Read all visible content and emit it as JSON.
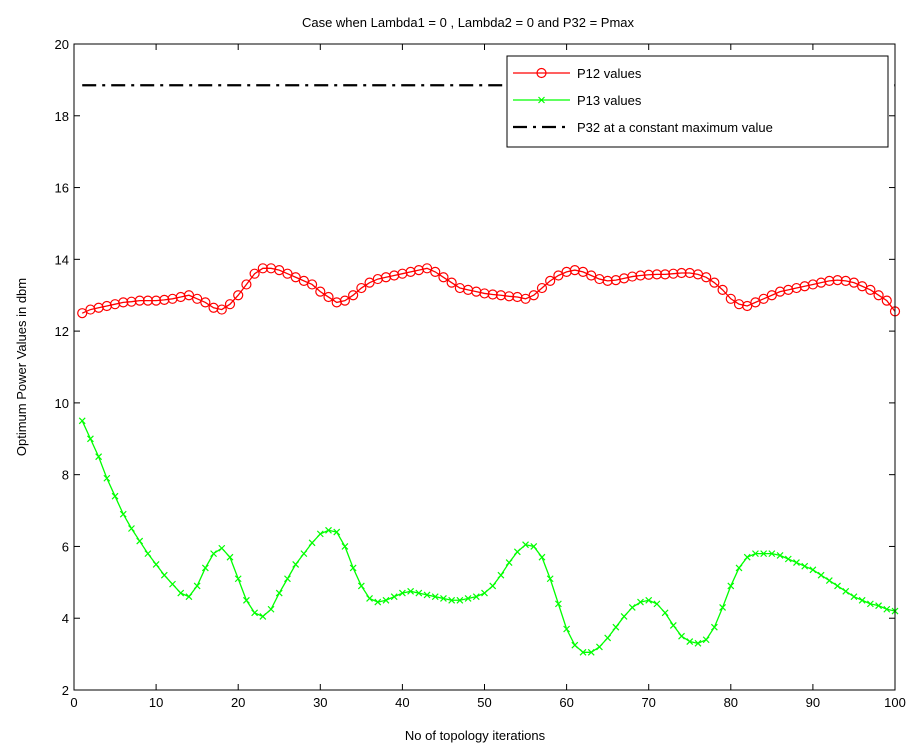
{
  "chart_data": {
    "type": "line",
    "title": "Case when Lambda1 = 0 , Lambda2 = 0 and P32 = Pmax",
    "xlabel": "No of topology iterations",
    "ylabel": "Optimum Power Values in dbm",
    "xlim": [
      0,
      100
    ],
    "ylim": [
      2,
      20
    ],
    "xticks": [
      0,
      10,
      20,
      30,
      40,
      50,
      60,
      70,
      80,
      90,
      100
    ],
    "yticks": [
      2,
      4,
      6,
      8,
      10,
      12,
      14,
      16,
      18,
      20
    ],
    "grid": false,
    "legend_position": "top-right",
    "series": [
      {
        "name": "P12 values",
        "color": "#ff0000",
        "marker": "circle",
        "line": "solid",
        "x": [
          1,
          2,
          3,
          4,
          5,
          6,
          7,
          8,
          9,
          10,
          11,
          12,
          13,
          14,
          15,
          16,
          17,
          18,
          19,
          20,
          21,
          22,
          23,
          24,
          25,
          26,
          27,
          28,
          29,
          30,
          31,
          32,
          33,
          34,
          35,
          36,
          37,
          38,
          39,
          40,
          41,
          42,
          43,
          44,
          45,
          46,
          47,
          48,
          49,
          50,
          51,
          52,
          53,
          54,
          55,
          56,
          57,
          58,
          59,
          60,
          61,
          62,
          63,
          64,
          65,
          66,
          67,
          68,
          69,
          70,
          71,
          72,
          73,
          74,
          75,
          76,
          77,
          78,
          79,
          80,
          81,
          82,
          83,
          84,
          85,
          86,
          87,
          88,
          89,
          90,
          91,
          92,
          93,
          94,
          95,
          96,
          97,
          98,
          99,
          100
        ],
        "y": [
          12.5,
          12.6,
          12.65,
          12.7,
          12.75,
          12.8,
          12.82,
          12.85,
          12.85,
          12.85,
          12.87,
          12.9,
          12.95,
          13.0,
          12.9,
          12.8,
          12.65,
          12.6,
          12.75,
          13.0,
          13.3,
          13.6,
          13.75,
          13.75,
          13.7,
          13.6,
          13.5,
          13.4,
          13.3,
          13.1,
          12.95,
          12.8,
          12.85,
          13.0,
          13.2,
          13.35,
          13.45,
          13.5,
          13.55,
          13.6,
          13.65,
          13.7,
          13.75,
          13.65,
          13.5,
          13.35,
          13.2,
          13.15,
          13.1,
          13.05,
          13.02,
          13.0,
          12.97,
          12.95,
          12.9,
          13.0,
          13.2,
          13.4,
          13.55,
          13.65,
          13.7,
          13.65,
          13.55,
          13.45,
          13.4,
          13.42,
          13.47,
          13.52,
          13.55,
          13.57,
          13.58,
          13.58,
          13.6,
          13.62,
          13.62,
          13.58,
          13.5,
          13.35,
          13.15,
          12.9,
          12.75,
          12.7,
          12.8,
          12.9,
          13.0,
          13.1,
          13.15,
          13.2,
          13.25,
          13.3,
          13.35,
          13.4,
          13.42,
          13.4,
          13.35,
          13.25,
          13.15,
          13.0,
          12.85,
          12.55
        ]
      },
      {
        "name": "P13 values",
        "color": "#00ff00",
        "marker": "x",
        "line": "solid",
        "x": [
          1,
          2,
          3,
          4,
          5,
          6,
          7,
          8,
          9,
          10,
          11,
          12,
          13,
          14,
          15,
          16,
          17,
          18,
          19,
          20,
          21,
          22,
          23,
          24,
          25,
          26,
          27,
          28,
          29,
          30,
          31,
          32,
          33,
          34,
          35,
          36,
          37,
          38,
          39,
          40,
          41,
          42,
          43,
          44,
          45,
          46,
          47,
          48,
          49,
          50,
          51,
          52,
          53,
          54,
          55,
          56,
          57,
          58,
          59,
          60,
          61,
          62,
          63,
          64,
          65,
          66,
          67,
          68,
          69,
          70,
          71,
          72,
          73,
          74,
          75,
          76,
          77,
          78,
          79,
          80,
          81,
          82,
          83,
          84,
          85,
          86,
          87,
          88,
          89,
          90,
          91,
          92,
          93,
          94,
          95,
          96,
          97,
          98,
          99,
          100
        ],
        "y": [
          9.5,
          9.0,
          8.5,
          7.9,
          7.4,
          6.9,
          6.5,
          6.15,
          5.8,
          5.5,
          5.2,
          4.95,
          4.7,
          4.6,
          4.9,
          5.4,
          5.8,
          5.95,
          5.7,
          5.1,
          4.5,
          4.15,
          4.05,
          4.25,
          4.7,
          5.1,
          5.5,
          5.8,
          6.1,
          6.35,
          6.45,
          6.4,
          6.0,
          5.4,
          4.9,
          4.55,
          4.45,
          4.5,
          4.6,
          4.7,
          4.75,
          4.7,
          4.65,
          4.6,
          4.55,
          4.5,
          4.5,
          4.55,
          4.6,
          4.7,
          4.9,
          5.2,
          5.55,
          5.85,
          6.05,
          6.0,
          5.7,
          5.1,
          4.4,
          3.7,
          3.25,
          3.05,
          3.05,
          3.2,
          3.45,
          3.75,
          4.05,
          4.3,
          4.45,
          4.5,
          4.4,
          4.15,
          3.8,
          3.5,
          3.35,
          3.3,
          3.4,
          3.75,
          4.3,
          4.9,
          5.4,
          5.7,
          5.8,
          5.8,
          5.8,
          5.75,
          5.65,
          5.55,
          5.45,
          5.35,
          5.2,
          5.05,
          4.9,
          4.75,
          4.6,
          4.5,
          4.4,
          4.35,
          4.25,
          4.2
        ]
      },
      {
        "name": "P32 at a constant maximum value",
        "color": "#000000",
        "marker": "none",
        "line": "dashdot",
        "x": [
          1,
          100
        ],
        "y": [
          18.85,
          18.85
        ]
      }
    ]
  }
}
